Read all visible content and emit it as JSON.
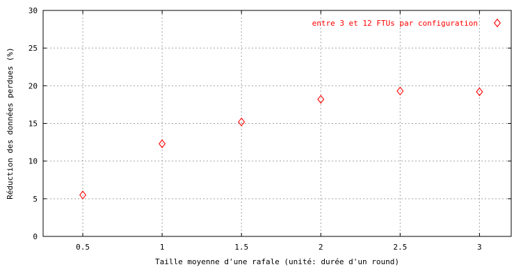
{
  "chart_data": {
    "type": "scatter",
    "title": "",
    "xlabel": "Taille moyenne d'une rafale (unité: durée d'un round)",
    "ylabel": "Réduction des données perdues (%)",
    "xlim": [
      0.25,
      3.2
    ],
    "ylim": [
      0,
      30
    ],
    "xticks": [
      0.5,
      1,
      1.5,
      2,
      2.5,
      3
    ],
    "xtick_labels": [
      "0.5",
      "1",
      "1.5",
      "2",
      "2.5",
      "3"
    ],
    "yticks": [
      0,
      5,
      10,
      15,
      20,
      25,
      30
    ],
    "ytick_labels": [
      "0",
      "5",
      "10",
      "15",
      "20",
      "25",
      "30"
    ],
    "grid": true,
    "legend_position": "top-right",
    "series": [
      {
        "name": "entre 3 et 12 FTUs par configuration",
        "color": "#ff0000",
        "marker": "diamond",
        "x": [
          0.5,
          1,
          1.5,
          2,
          2.5,
          3
        ],
        "y": [
          5.5,
          12.3,
          15.2,
          18.2,
          19.3,
          19.2
        ]
      }
    ]
  }
}
